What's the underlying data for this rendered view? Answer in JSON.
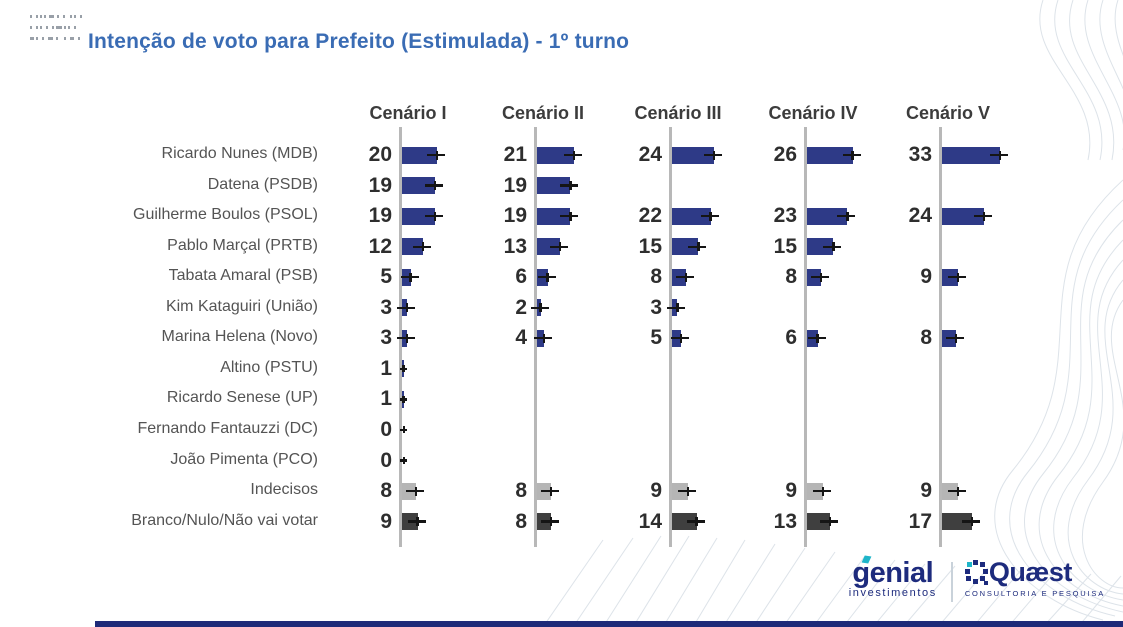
{
  "title": "Intenção de voto para Prefeito (Estimulada) - 1º turno",
  "colors": {
    "title": "#3a6cb4",
    "bar": "#2e3a87",
    "axis": "#b8b8b8",
    "error_bar": "#151515",
    "value_text": "#2e2e2e",
    "label_text": "#545454",
    "header_text": "#3c3c3c",
    "footer_bar": "#1e2a78",
    "logo_navy": "#1d2b7d",
    "logo_teal": "#1fb5c9"
  },
  "chart_data": {
    "type": "bar",
    "orientation": "horizontal",
    "title": "Intenção de voto para Prefeito (Estimulada) - 1º turno",
    "unit": "percent",
    "value_range": [
      0,
      33
    ],
    "error_bars": true,
    "categories": [
      "Ricardo Nunes (MDB)",
      "Datena (PSDB)",
      "Guilherme Boulos (PSOL)",
      "Pablo Marçal (PRTB)",
      "Tabata Amaral (PSB)",
      "Kim Kataguiri (União)",
      "Marina Helena (Novo)",
      "Altino (PSTU)",
      "Ricardo Senese (UP)",
      "Fernando Fantauzzi (DC)",
      "João Pimenta (PCO)",
      "Indecisos",
      "Branco/Nulo/Não vai votar"
    ],
    "series": [
      {
        "name": "Cenário I",
        "values": [
          20,
          19,
          19,
          12,
          5,
          3,
          3,
          1,
          1,
          0,
          0,
          8,
          9
        ]
      },
      {
        "name": "Cenário II",
        "values": [
          21,
          19,
          19,
          13,
          6,
          2,
          4,
          null,
          null,
          null,
          null,
          8,
          8
        ]
      },
      {
        "name": "Cenário III",
        "values": [
          24,
          null,
          22,
          15,
          8,
          3,
          5,
          null,
          null,
          null,
          null,
          9,
          14
        ]
      },
      {
        "name": "Cenário IV",
        "values": [
          26,
          null,
          23,
          15,
          8,
          null,
          6,
          null,
          null,
          null,
          null,
          9,
          13
        ]
      },
      {
        "name": "Cenário V",
        "values": [
          33,
          null,
          24,
          null,
          9,
          null,
          8,
          null,
          null,
          null,
          null,
          9,
          17
        ]
      }
    ],
    "category_colors": {
      "Indecisos": "#b5b5b5",
      "Branco/Nulo/Não vai votar": "#3f3f3f"
    },
    "legend": false,
    "grid": false
  },
  "footer": {
    "genial": {
      "name": "genial",
      "subtitle": "investimentos"
    },
    "quaest": {
      "name": "Quæst",
      "subtitle": "CONSULTORIA E PESQUISA"
    }
  }
}
